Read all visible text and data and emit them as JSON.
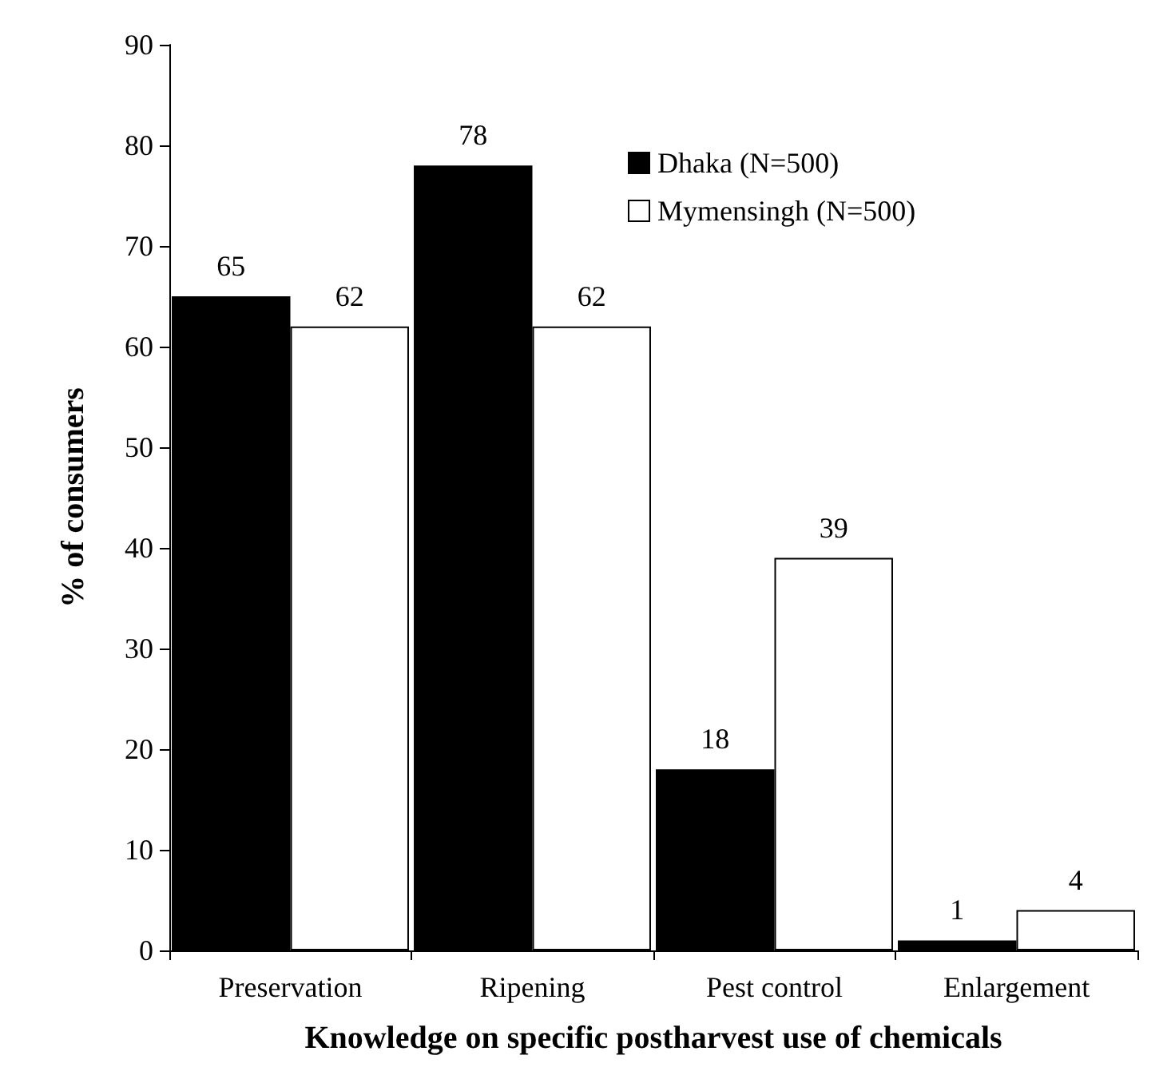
{
  "chart_data": {
    "type": "bar",
    "xlabel": "Knowledge on specific postharvest use of chemicals",
    "ylabel": "% of consumers",
    "categories": [
      "Preservation",
      "Ripening",
      "Pest control",
      "Enlargement"
    ],
    "series": [
      {
        "name": "Dhaka (N=500)",
        "color": "#000000",
        "values": [
          65,
          78,
          18,
          1
        ]
      },
      {
        "name": "Mymensingh (N=500)",
        "color": "#ffffff",
        "values": [
          62,
          62,
          39,
          4
        ]
      }
    ],
    "ylim": [
      0,
      90
    ],
    "yticks": [
      0,
      10,
      20,
      30,
      40,
      50,
      60,
      70,
      80,
      90
    ],
    "grid": false,
    "legend": "top right",
    "data_labels": true
  }
}
